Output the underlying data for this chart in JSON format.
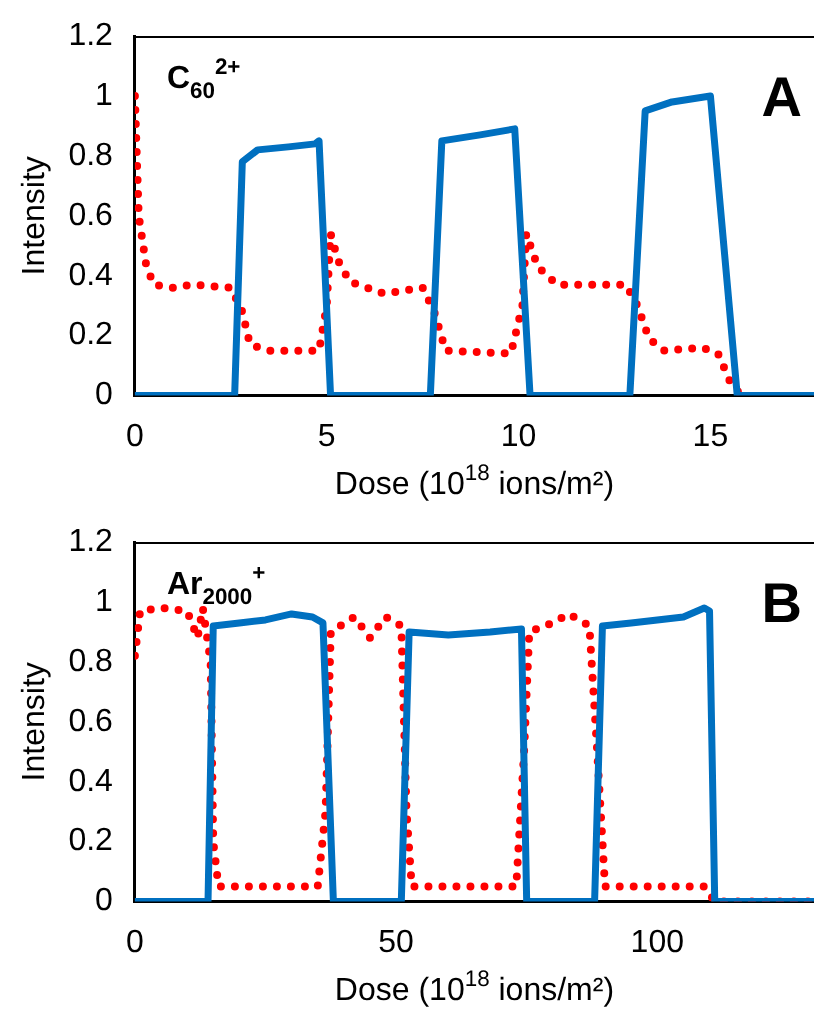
{
  "chart_data": [
    {
      "type": "line",
      "xlabel": "Dose (10$^{18}$ ions/m²)",
      "ylabel": "Intensity",
      "annotations": [
        "C$_{60}$$^{2+}$",
        "A"
      ],
      "xlim": [
        0,
        17.7
      ],
      "xticks": [
        0,
        5,
        10,
        15
      ],
      "ylim": [
        0,
        1.2
      ],
      "yticks": [
        0,
        0.2,
        0.4,
        0.6,
        0.8,
        1,
        1.2
      ],
      "grid": false,
      "legend": false,
      "marker": "none",
      "series": [
        {
          "color": "#0070c0",
          "line_style": "solid",
          "x": [
            0,
            2.6,
            2.8,
            3.2,
            4,
            4.7,
            4.8,
            5.1,
            7.7,
            8,
            9,
            9.9,
            10.3,
            12.9,
            13.3,
            14,
            15,
            15.7,
            17.7
          ],
          "values": [
            0,
            0,
            0.78,
            0.82,
            0.83,
            0.84,
            0.85,
            0,
            0,
            0.85,
            0.87,
            0.89,
            0,
            0,
            0.95,
            0.98,
            1,
            0,
            0
          ]
        },
        {
          "color": "#ff0000",
          "line_style": "dotted",
          "x": [
            0,
            0.1,
            0.3,
            0.5,
            1,
            1.5,
            2.5,
            2.8,
            3,
            3.5,
            4.8,
            5,
            5.1,
            5.3,
            5.6,
            6.5,
            7.5,
            7.8,
            8.1,
            9.8,
            10.1,
            10.2,
            10.5,
            11,
            12.8,
            13.1,
            13.4,
            13.8,
            14.8,
            15.2,
            15.5,
            15.8
          ],
          "values": [
            1,
            0.6,
            0.43,
            0.37,
            0.36,
            0.37,
            0.36,
            0.28,
            0.17,
            0.15,
            0.15,
            0.3,
            0.54,
            0.45,
            0.38,
            0.34,
            0.36,
            0.28,
            0.15,
            0.14,
            0.3,
            0.54,
            0.43,
            0.37,
            0.37,
            0.3,
            0.19,
            0.15,
            0.16,
            0.14,
            0.05,
            0
          ]
        }
      ]
    },
    {
      "type": "line",
      "xlabel": "Dose (10$^{18}$ ions/m²)",
      "ylabel": "Intensity",
      "annotations": [
        "Ar$_{2000}$$^{+}$",
        "B"
      ],
      "xlim": [
        0,
        130
      ],
      "xticks": [
        0,
        50,
        100
      ],
      "ylim": [
        0,
        1.2
      ],
      "yticks": [
        0,
        0.2,
        0.4,
        0.6,
        0.8,
        1,
        1.2
      ],
      "grid": false,
      "legend": false,
      "marker": "none",
      "series": [
        {
          "color": "#0070c0",
          "line_style": "solid",
          "x": [
            0,
            14,
            15,
            20,
            25,
            30,
            34,
            36,
            38,
            51,
            52.5,
            60,
            68,
            74,
            75,
            88,
            89.5,
            95,
            100,
            105,
            109,
            110,
            111,
            130
          ],
          "values": [
            0,
            0,
            0.92,
            0.93,
            0.94,
            0.96,
            0.95,
            0.93,
            0,
            0,
            0.9,
            0.89,
            0.9,
            0.91,
            0,
            0,
            0.92,
            0.93,
            0.94,
            0.95,
            0.98,
            0.97,
            0,
            0
          ]
        },
        {
          "color": "#ff0000",
          "line_style": "dotted",
          "x": [
            0,
            1,
            5,
            10,
            12,
            13,
            14.5,
            15,
            16,
            35,
            36.5,
            37.5,
            42,
            45,
            48,
            51,
            52,
            53,
            73,
            74.5,
            75.5,
            80,
            83,
            87,
            88.5,
            90,
            109,
            111,
            130
          ],
          "values": [
            0.82,
            0.97,
            0.98,
            0.97,
            0.88,
            0.98,
            0.8,
            0.2,
            0.05,
            0.05,
            0.3,
            0.9,
            0.95,
            0.88,
            0.95,
            0.92,
            0.3,
            0.05,
            0.05,
            0.5,
            0.9,
            0.93,
            0.96,
            0.92,
            0.5,
            0.05,
            0.05,
            0,
            0
          ]
        }
      ]
    }
  ]
}
